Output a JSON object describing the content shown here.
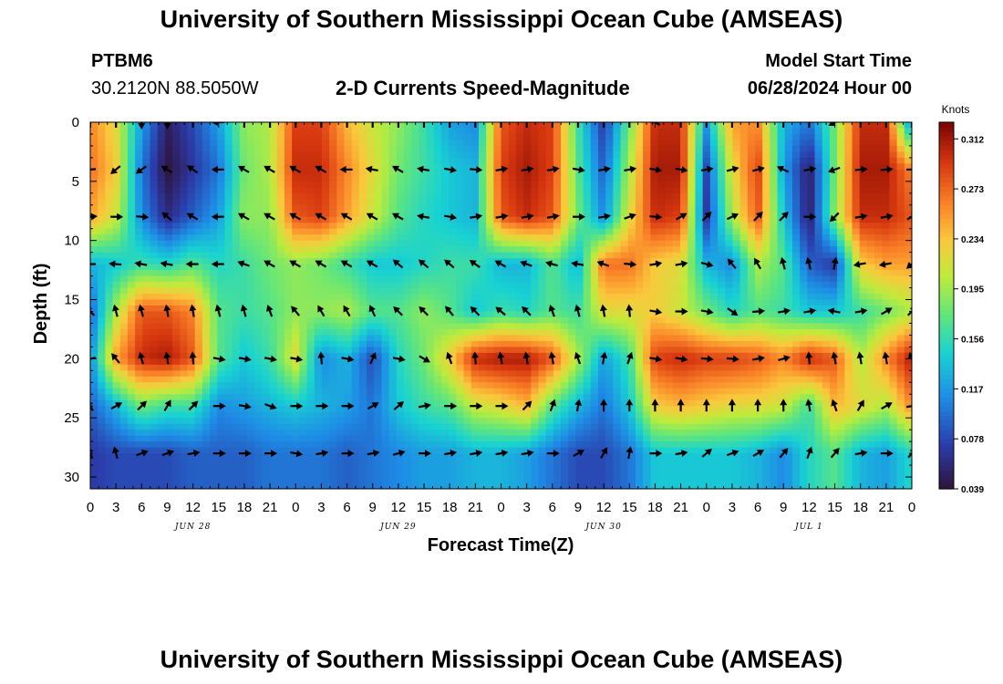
{
  "page": {
    "title_top": "University of Southern Mississippi Ocean Cube (AMSEAS)",
    "title_bottom": "University of Southern Mississippi Ocean Cube (AMSEAS)",
    "station_id": "PTBM6",
    "station_coords": "30.2120N  88.5050W",
    "plot_title": "2-D Currents Speed-Magnitude",
    "model_start_label": "Model Start Time",
    "model_start_value": "06/28/2024 Hour 00"
  },
  "chart_data": {
    "type": "heatmap",
    "title": "2-D Currents Speed-Magnitude",
    "xlabel": "Forecast Time(Z)",
    "ylabel": "Depth (ft)",
    "x_range_hours": [
      0,
      96
    ],
    "y_range_ft": [
      0,
      31
    ],
    "y_reversed": true,
    "x_tick_labels": [
      "0",
      "3",
      "6",
      "9",
      "12",
      "15",
      "18",
      "21",
      "0",
      "3",
      "6",
      "9",
      "12",
      "15",
      "18",
      "21",
      "0",
      "3",
      "6",
      "9",
      "12",
      "15",
      "18",
      "21",
      "0",
      "3",
      "6",
      "9",
      "12",
      "15",
      "18",
      "21",
      "0"
    ],
    "y_ticks": [
      0,
      5,
      10,
      15,
      20,
      25,
      30
    ],
    "date_labels": [
      {
        "label": "JUN 28",
        "hour": 12
      },
      {
        "label": "JUN 29",
        "hour": 36
      },
      {
        "label": "JUN 30",
        "hour": 60
      },
      {
        "label": "JUL 1",
        "hour": 84
      }
    ],
    "colorbar": {
      "units": "Knots",
      "ticks": [
        0.039,
        0.078,
        0.117,
        0.156,
        0.195,
        0.234,
        0.273,
        0.312
      ],
      "range": [
        0.039,
        0.325
      ]
    },
    "depth_levels_ft": [
      0,
      4,
      8,
      12,
      16,
      20,
      24,
      28
    ],
    "time_hours": [
      0,
      3,
      6,
      9,
      12,
      15,
      18,
      21,
      24,
      27,
      30,
      33,
      36,
      39,
      42,
      45,
      48,
      51,
      54,
      57,
      60,
      63,
      66,
      69,
      72,
      75,
      78,
      81,
      84,
      87,
      90,
      93,
      96
    ],
    "speed_knots": [
      [
        0.26,
        0.22,
        0.12,
        0.05,
        0.08,
        0.12,
        0.19,
        0.2,
        0.29,
        0.29,
        0.24,
        0.21,
        0.19,
        0.16,
        0.12,
        0.11,
        0.28,
        0.3,
        0.29,
        0.16,
        0.07,
        0.18,
        0.3,
        0.3,
        0.12,
        0.25,
        0.26,
        0.13,
        0.1,
        0.18,
        0.3,
        0.3,
        0.1
      ],
      [
        0.27,
        0.23,
        0.1,
        0.04,
        0.07,
        0.1,
        0.18,
        0.2,
        0.3,
        0.3,
        0.26,
        0.22,
        0.18,
        0.16,
        0.14,
        0.13,
        0.29,
        0.31,
        0.29,
        0.17,
        0.09,
        0.2,
        0.31,
        0.31,
        0.08,
        0.22,
        0.29,
        0.12,
        0.05,
        0.18,
        0.31,
        0.31,
        0.26
      ],
      [
        0.25,
        0.21,
        0.11,
        0.06,
        0.09,
        0.12,
        0.19,
        0.19,
        0.28,
        0.29,
        0.25,
        0.21,
        0.17,
        0.15,
        0.14,
        0.13,
        0.28,
        0.3,
        0.28,
        0.18,
        0.11,
        0.22,
        0.3,
        0.29,
        0.07,
        0.2,
        0.28,
        0.14,
        0.05,
        0.19,
        0.3,
        0.3,
        0.28
      ],
      [
        0.13,
        0.14,
        0.16,
        0.15,
        0.17,
        0.15,
        0.16,
        0.18,
        0.19,
        0.18,
        0.16,
        0.14,
        0.14,
        0.15,
        0.16,
        0.16,
        0.13,
        0.13,
        0.17,
        0.13,
        0.27,
        0.27,
        0.23,
        0.22,
        0.13,
        0.11,
        0.2,
        0.17,
        0.09,
        0.07,
        0.23,
        0.25,
        0.25
      ],
      [
        0.09,
        0.2,
        0.28,
        0.28,
        0.26,
        0.17,
        0.16,
        0.17,
        0.19,
        0.19,
        0.2,
        0.17,
        0.17,
        0.19,
        0.17,
        0.14,
        0.16,
        0.15,
        0.17,
        0.16,
        0.22,
        0.22,
        0.23,
        0.21,
        0.18,
        0.15,
        0.17,
        0.16,
        0.14,
        0.14,
        0.16,
        0.18,
        0.2
      ],
      [
        0.11,
        0.25,
        0.3,
        0.31,
        0.28,
        0.17,
        0.14,
        0.16,
        0.22,
        0.11,
        0.13,
        0.08,
        0.15,
        0.18,
        0.23,
        0.3,
        0.31,
        0.31,
        0.28,
        0.2,
        0.12,
        0.16,
        0.29,
        0.3,
        0.29,
        0.29,
        0.28,
        0.26,
        0.3,
        0.28,
        0.2,
        0.26,
        0.31
      ],
      [
        0.09,
        0.13,
        0.18,
        0.16,
        0.16,
        0.11,
        0.12,
        0.13,
        0.14,
        0.13,
        0.12,
        0.1,
        0.14,
        0.16,
        0.17,
        0.21,
        0.22,
        0.24,
        0.17,
        0.13,
        0.1,
        0.14,
        0.23,
        0.24,
        0.23,
        0.22,
        0.22,
        0.21,
        0.16,
        0.24,
        0.22,
        0.2,
        0.26
      ],
      [
        0.07,
        0.08,
        0.08,
        0.08,
        0.09,
        0.09,
        0.09,
        0.1,
        0.1,
        0.1,
        0.09,
        0.1,
        0.11,
        0.12,
        0.12,
        0.13,
        0.13,
        0.12,
        0.1,
        0.08,
        0.08,
        0.1,
        0.14,
        0.14,
        0.14,
        0.14,
        0.13,
        0.11,
        0.15,
        0.17,
        0.13,
        0.12,
        0.15
      ]
    ],
    "arrows": [
      {
        "depth_ft": 0,
        "angles_deg": [
          0,
          0,
          180,
          180,
          0,
          270,
          0,
          0,
          0,
          0,
          0,
          0,
          0,
          0,
          0,
          0,
          0,
          0,
          0,
          0,
          0,
          0,
          300,
          0,
          0,
          0,
          0,
          0,
          0,
          240,
          0,
          0,
          0
        ]
      },
      {
        "depth_ft": 4,
        "angles_deg": [
          265,
          230,
          235,
          300,
          305,
          270,
          300,
          300,
          300,
          300,
          270,
          280,
          300,
          280,
          100,
          95,
          80,
          80,
          80,
          100,
          80,
          80,
          100,
          100,
          80,
          75,
          75,
          295,
          80,
          250,
          85,
          85,
          90
        ]
      },
      {
        "depth_ft": 8,
        "angles_deg": [
          85,
          90,
          95,
          310,
          300,
          270,
          300,
          300,
          300,
          300,
          300,
          300,
          300,
          280,
          100,
          80,
          80,
          80,
          80,
          90,
          80,
          70,
          95,
          60,
          45,
          65,
          45,
          45,
          90,
          225,
          80,
          80,
          60
        ]
      },
      {
        "depth_ft": 12,
        "angles_deg": [
          270,
          275,
          280,
          280,
          270,
          270,
          290,
          300,
          300,
          300,
          300,
          300,
          310,
          310,
          310,
          305,
          300,
          290,
          285,
          280,
          290,
          95,
          80,
          80,
          105,
          320,
          330,
          345,
          345,
          10,
          260,
          260,
          230
        ]
      },
      {
        "depth_ft": 16,
        "angles_deg": [
          315,
          345,
          345,
          350,
          350,
          345,
          345,
          340,
          320,
          330,
          330,
          335,
          315,
          315,
          320,
          315,
          310,
          315,
          340,
          345,
          350,
          355,
          100,
          90,
          100,
          125,
          85,
          80,
          80,
          280,
          80,
          60,
          45
        ]
      },
      {
        "depth_ft": 20,
        "angles_deg": [
          260,
          320,
          345,
          350,
          355,
          100,
          100,
          100,
          100,
          355,
          100,
          25,
          100,
          120,
          340,
          355,
          350,
          350,
          350,
          340,
          10,
          20,
          100,
          100,
          95,
          95,
          80,
          75,
          355,
          350,
          350,
          350,
          340
        ]
      },
      {
        "depth_ft": 24,
        "angles_deg": [
          330,
          60,
          45,
          30,
          45,
          90,
          100,
          110,
          90,
          90,
          90,
          60,
          50,
          80,
          90,
          90,
          90,
          45,
          20,
          10,
          0,
          0,
          0,
          0,
          0,
          0,
          0,
          0,
          350,
          340,
          30,
          60,
          80
        ]
      },
      {
        "depth_ft": 28,
        "angles_deg": [
          340,
          345,
          70,
          70,
          80,
          90,
          90,
          90,
          100,
          80,
          90,
          80,
          75,
          90,
          80,
          80,
          80,
          80,
          90,
          60,
          30,
          10,
          90,
          80,
          50,
          70,
          60,
          40,
          20,
          40,
          80,
          90,
          40
        ]
      }
    ]
  }
}
